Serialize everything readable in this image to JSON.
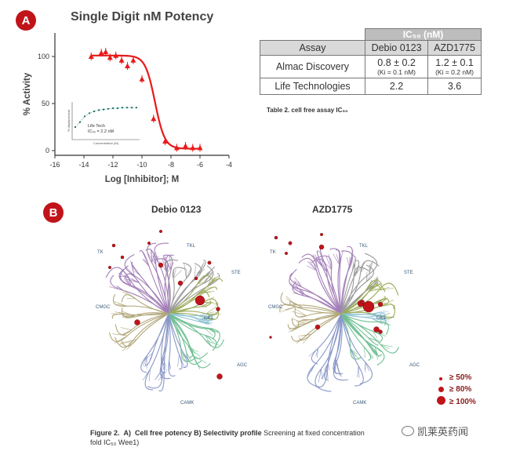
{
  "panel_a": {
    "badge": "A",
    "title": "Single Digit nM Potency"
  },
  "panel_b": {
    "badge": "B",
    "tree_titles": [
      "Debio 0123",
      "AZD1775"
    ],
    "tree_labels": [
      "TK",
      "TKL",
      "STE",
      "CMGC",
      "CK1",
      "AGC",
      "CAMK"
    ],
    "legend": [
      "≥ 50%",
      "≥ 80%",
      "≥ 100%"
    ],
    "colors": {
      "tk": "#a37fb8",
      "tkl": "#9a9a9a",
      "ste": "#9aab5a",
      "cmgc": "#b2a77b",
      "ck1": "#8fc3d3",
      "agc": "#6fbf92",
      "camk": "#8a98c7",
      "hit": "#c0141a"
    }
  },
  "chart_data": {
    "type": "scatter",
    "title": "",
    "xlabel": "Log [Inhibitor]; M",
    "ylabel": "% Activity",
    "xlim": [
      -16,
      -4
    ],
    "ylim": [
      -5,
      125
    ],
    "xticks": [
      "-16",
      "-14",
      "-12",
      "-10",
      "-8",
      "-6",
      "-4"
    ],
    "yticks": [
      "0",
      "50",
      "100"
    ],
    "series": [
      {
        "name": "Debio 0123",
        "x": [
          -13.5,
          -12.8,
          -12.5,
          -12.2,
          -11.8,
          -11.4,
          -11.0,
          -10.6,
          -10.0,
          -9.2,
          -8.4,
          -7.6,
          -7.0,
          -6.5,
          -6.0
        ],
        "y": [
          100,
          104,
          105,
          99,
          101,
          96,
          90,
          96,
          76,
          34,
          10,
          3,
          5,
          3,
          3
        ],
        "fit_ic50_log": -9.1,
        "top": 101,
        "bottom": 2
      }
    ],
    "inset": {
      "label_line1": "Life Tech",
      "label_line2": "IC₅₀ = 2.2 nM",
      "ylabel": "% displacement",
      "xlabel": "Concentration (M)",
      "x": [
        1,
        2,
        3,
        4,
        5,
        6,
        7,
        8,
        9,
        10,
        11,
        12,
        13,
        14
      ],
      "y": [
        20,
        28,
        37,
        42,
        45,
        47,
        48,
        49,
        50,
        50,
        51,
        51,
        51,
        51
      ]
    }
  },
  "table": {
    "header_top": "IC₅₀ (nM)",
    "columns": [
      "Assay",
      "Debio 0123",
      "AZD1775"
    ],
    "rows": [
      {
        "assay": "Almac Discovery",
        "debio": "0.8 ± 0.2",
        "debio_sub": "(Ki = 0.1 nM)",
        "azd": "1.2 ± 0.1",
        "azd_sub": "(Ki = 0.2 nM)"
      },
      {
        "assay": "Life Technologies",
        "debio": "2.2",
        "debio_sub": "",
        "azd": "3.6",
        "azd_sub": ""
      }
    ],
    "caption": "Table 2. cell free assay IC₅₀"
  },
  "figure_caption": {
    "label": "Figure 2.",
    "part_a": "A)",
    "part_a_title": "Cell free potency",
    "part_b_title": "B) Selectivity profile",
    "text_1": "Screening at fixed concentration",
    "text_2": "fold IC₅₀ Wee1)"
  },
  "watermark": "凯莱英药闻"
}
